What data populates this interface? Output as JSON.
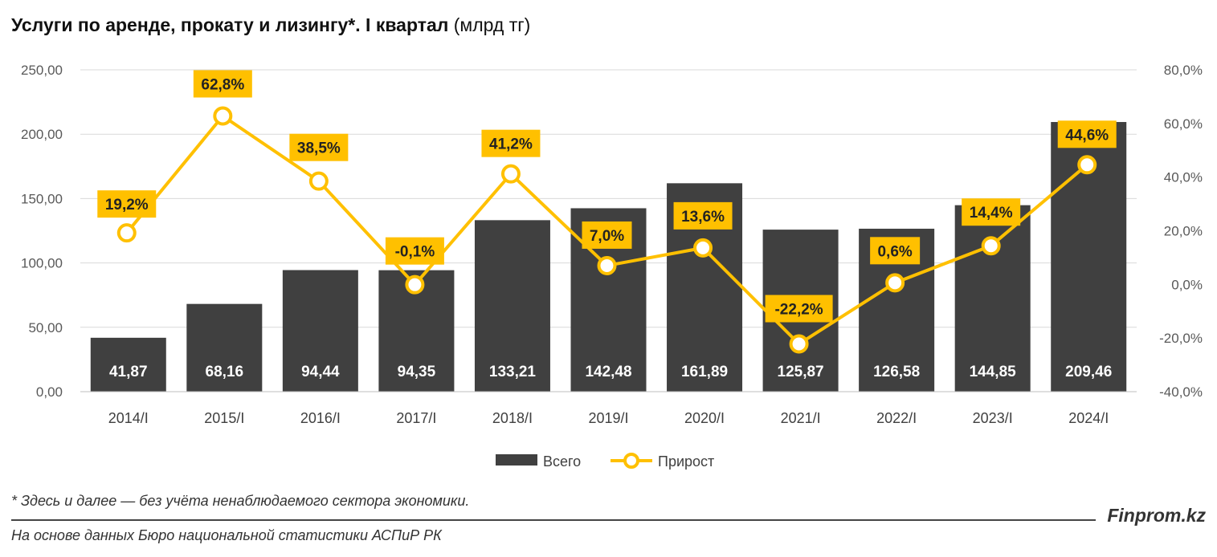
{
  "title_bold": "Услуги по аренде, прокату и лизингу*. I квартал",
  "title_unit": " (млрд тг)",
  "footnote": "* Здесь и далее — без учёта ненаблюдаемого сектора экономики.",
  "source": "На основе данных Бюро национальной статистики АСПиР РК",
  "brand": "Finprom.kz",
  "colors": {
    "bar": "#404040",
    "line": "#FFC000",
    "grid": "#d9d9d9",
    "label_bg": "#FFC000"
  },
  "chart_data": {
    "type": "bar",
    "categories": [
      "2014/I",
      "2015/I",
      "2016/I",
      "2017/I",
      "2018/I",
      "2019/I",
      "2020/I",
      "2021/I",
      "2022/I",
      "2023/I",
      "2024/I"
    ],
    "series": [
      {
        "name": "Всего",
        "type": "bar",
        "axis": "left",
        "values": [
          41.87,
          68.16,
          94.44,
          94.35,
          133.21,
          142.48,
          161.89,
          125.87,
          126.58,
          144.85,
          209.46
        ],
        "labels": [
          "41,87",
          "68,16",
          "94,44",
          "94,35",
          "133,21",
          "142,48",
          "161,89",
          "125,87",
          "126,58",
          "144,85",
          "209,46"
        ]
      },
      {
        "name": "Прирост",
        "type": "line",
        "axis": "right",
        "values": [
          19.2,
          62.8,
          38.5,
          -0.1,
          41.2,
          7.0,
          13.6,
          -22.2,
          0.6,
          14.4,
          44.6
        ],
        "labels": [
          "19,2%",
          "62,8%",
          "38,5%",
          "-0,1%",
          "41,2%",
          "7,0%",
          "13,6%",
          "-22,2%",
          "0,6%",
          "14,4%",
          "44,6%"
        ]
      }
    ],
    "y_left": {
      "range": [
        0,
        250
      ],
      "ticks": [
        "0,00",
        "50,00",
        "100,00",
        "150,00",
        "200,00",
        "250,00"
      ],
      "tick_values": [
        0,
        50,
        100,
        150,
        200,
        250
      ]
    },
    "y_right": {
      "range": [
        -40,
        80
      ],
      "ticks": [
        "-40,0%",
        "-20,0%",
        "0,0%",
        "20,0%",
        "40,0%",
        "60,0%",
        "80,0%"
      ],
      "tick_values": [
        -40,
        -20,
        0,
        20,
        40,
        60,
        80
      ]
    },
    "grid": true,
    "legend": {
      "position": "bottom",
      "entries": [
        "Всего",
        "Прирост"
      ]
    }
  }
}
